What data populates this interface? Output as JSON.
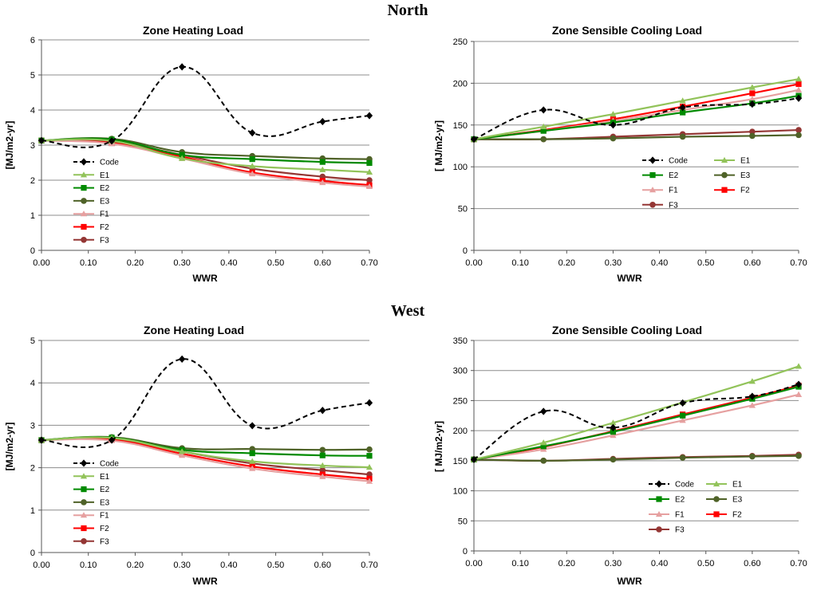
{
  "sections": [
    {
      "title": "North"
    },
    {
      "title": "West"
    }
  ],
  "series_styles": {
    "Code": {
      "color": "#000000",
      "marker": "diamond",
      "dash": true
    },
    "E1": {
      "color": "#92C35A",
      "marker": "triangle",
      "dash": false
    },
    "E2": {
      "color": "#008A00",
      "marker": "square",
      "dash": false
    },
    "E3": {
      "color": "#4F6228",
      "marker": "circle",
      "dash": false
    },
    "F1": {
      "color": "#E6A0A0",
      "marker": "triangle",
      "dash": false
    },
    "F2": {
      "color": "#FF0000",
      "marker": "square",
      "dash": false
    },
    "F3": {
      "color": "#943634",
      "marker": "circle",
      "dash": false
    }
  },
  "chart_data": [
    {
      "type": "line",
      "section": "North",
      "title": "Zone Heating Load",
      "xlabel": "WWR",
      "ylabel": "[MJ/m2-yr]",
      "xlim": [
        0,
        0.7
      ],
      "xticks": [
        "0.00",
        "0.10",
        "0.20",
        "0.30",
        "0.40",
        "0.50",
        "0.60",
        "0.70"
      ],
      "ylim": [
        0,
        6
      ],
      "yticks": [
        "0",
        "1",
        "2",
        "3",
        "4",
        "5",
        "6"
      ],
      "x": [
        0.0,
        0.15,
        0.3,
        0.45,
        0.6,
        0.7
      ],
      "legend_columns": 1,
      "series": [
        {
          "name": "Code",
          "values": [
            3.13,
            3.12,
            5.23,
            3.35,
            3.67,
            3.84
          ]
        },
        {
          "name": "E1",
          "values": [
            3.13,
            3.12,
            2.62,
            2.4,
            2.3,
            2.23
          ]
        },
        {
          "name": "E2",
          "values": [
            3.13,
            3.16,
            2.72,
            2.6,
            2.52,
            2.49
          ]
        },
        {
          "name": "E3",
          "values": [
            3.13,
            3.18,
            2.8,
            2.69,
            2.62,
            2.6
          ]
        },
        {
          "name": "F1",
          "values": [
            3.13,
            3.04,
            2.62,
            2.18,
            1.93,
            1.82
          ]
        },
        {
          "name": "F2",
          "values": [
            3.13,
            3.06,
            2.67,
            2.22,
            1.98,
            1.86
          ]
        },
        {
          "name": "F3",
          "values": [
            3.13,
            3.1,
            2.72,
            2.33,
            2.1,
            2.0
          ]
        }
      ]
    },
    {
      "type": "line",
      "section": "North",
      "title": "Zone Sensible Cooling Load",
      "xlabel": "WWR",
      "ylabel": "[ MJ/m2-yr]",
      "xlim": [
        0,
        0.7
      ],
      "xticks": [
        "0.00",
        "0.10",
        "0.20",
        "0.30",
        "0.40",
        "0.50",
        "0.60",
        "0.70"
      ],
      "ylim": [
        0,
        250
      ],
      "yticks": [
        "0",
        "50",
        "100",
        "150",
        "200",
        "250"
      ],
      "x": [
        0.0,
        0.15,
        0.3,
        0.45,
        0.6,
        0.7
      ],
      "legend_columns": 2,
      "series": [
        {
          "name": "Code",
          "values": [
            133,
            168,
            150,
            171,
            175,
            182
          ]
        },
        {
          "name": "E1",
          "values": [
            133,
            148,
            163,
            179,
            195,
            205
          ]
        },
        {
          "name": "E2",
          "values": [
            133,
            143,
            153,
            165,
            176,
            185
          ]
        },
        {
          "name": "E3",
          "values": [
            133,
            133,
            134,
            136,
            137,
            138
          ]
        },
        {
          "name": "F1",
          "values": [
            133,
            143,
            155,
            168,
            181,
            192
          ]
        },
        {
          "name": "F2",
          "values": [
            133,
            144,
            157,
            172,
            188,
            199
          ]
        },
        {
          "name": "F3",
          "values": [
            133,
            133,
            136,
            139,
            142,
            144
          ]
        }
      ]
    },
    {
      "type": "line",
      "section": "West",
      "title": "Zone Heating Load",
      "xlabel": "WWR",
      "ylabel": "[MJ/m2-yr]",
      "xlim": [
        0,
        0.7
      ],
      "xticks": [
        "0.00",
        "0.10",
        "0.20",
        "0.30",
        "0.40",
        "0.50",
        "0.60",
        "0.70"
      ],
      "ylim": [
        0,
        5
      ],
      "yticks": [
        "0",
        "1",
        "2",
        "3",
        "4",
        "5"
      ],
      "x": [
        0.0,
        0.15,
        0.3,
        0.45,
        0.6,
        0.7
      ],
      "legend_columns": 1,
      "series": [
        {
          "name": "Code",
          "values": [
            2.65,
            2.65,
            4.56,
            2.99,
            3.35,
            3.53
          ]
        },
        {
          "name": "E1",
          "values": [
            2.65,
            2.7,
            2.38,
            2.15,
            2.05,
            2.01
          ]
        },
        {
          "name": "E2",
          "values": [
            2.65,
            2.71,
            2.42,
            2.34,
            2.29,
            2.28
          ]
        },
        {
          "name": "E3",
          "values": [
            2.65,
            2.72,
            2.46,
            2.44,
            2.42,
            2.43
          ]
        },
        {
          "name": "F1",
          "values": [
            2.65,
            2.64,
            2.29,
            1.98,
            1.79,
            1.68
          ]
        },
        {
          "name": "F2",
          "values": [
            2.65,
            2.66,
            2.33,
            2.03,
            1.84,
            1.74
          ]
        },
        {
          "name": "F3",
          "values": [
            2.65,
            2.68,
            2.38,
            2.1,
            1.94,
            1.84
          ]
        }
      ]
    },
    {
      "type": "line",
      "section": "West",
      "title": "Zone Sensible Cooling Load",
      "xlabel": "WWR",
      "ylabel": "[ MJ/m2-yr]",
      "xlim": [
        0,
        0.7
      ],
      "xticks": [
        "0.00",
        "0.10",
        "0.20",
        "0.30",
        "0.40",
        "0.50",
        "0.60",
        "0.70"
      ],
      "ylim": [
        0,
        350
      ],
      "yticks": [
        "0",
        "50",
        "100",
        "150",
        "200",
        "250",
        "300",
        "350"
      ],
      "x": [
        0.0,
        0.15,
        0.3,
        0.45,
        0.6,
        0.7
      ],
      "legend_columns": 2,
      "series": [
        {
          "name": "Code",
          "values": [
            152,
            232,
            205,
            246,
            257,
            277
          ]
        },
        {
          "name": "E1",
          "values": [
            152,
            180,
            213,
            247,
            282,
            307
          ]
        },
        {
          "name": "E2",
          "values": [
            152,
            174,
            198,
            225,
            253,
            273
          ]
        },
        {
          "name": "E3",
          "values": [
            152,
            150,
            152,
            155,
            157,
            158
          ]
        },
        {
          "name": "F1",
          "values": [
            152,
            169,
            192,
            217,
            242,
            260
          ]
        },
        {
          "name": "F2",
          "values": [
            152,
            173,
            199,
            227,
            255,
            275
          ]
        },
        {
          "name": "F3",
          "values": [
            152,
            150,
            153,
            156,
            158,
            160
          ]
        }
      ]
    }
  ]
}
